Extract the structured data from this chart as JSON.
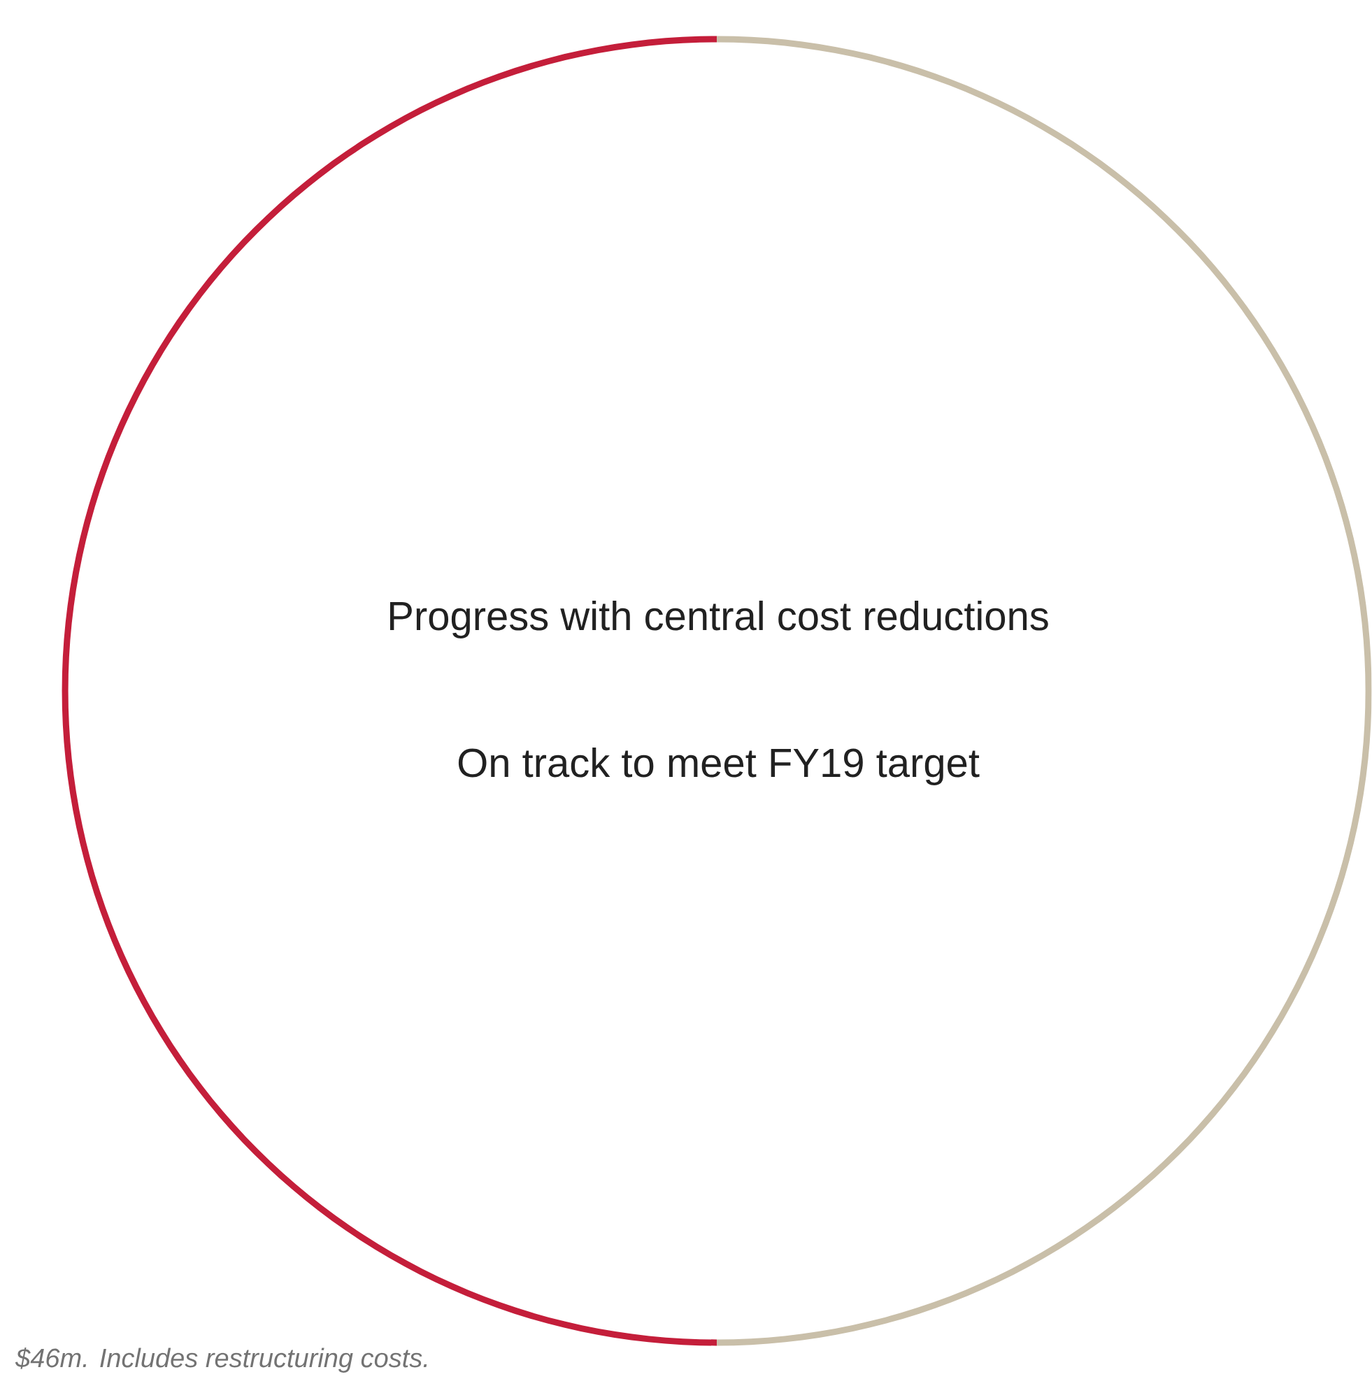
{
  "chart_data": {
    "type": "donut",
    "title": "Progress with central cost reductions",
    "subtitle": "On track to meet FY19 target",
    "categories": [
      null,
      null
    ],
    "values": [
      50,
      50
    ],
    "colors": [
      "#c41e3a",
      "#c9bfa9"
    ],
    "annotations": [
      "$46m. Includes restructuring costs."
    ]
  }
}
